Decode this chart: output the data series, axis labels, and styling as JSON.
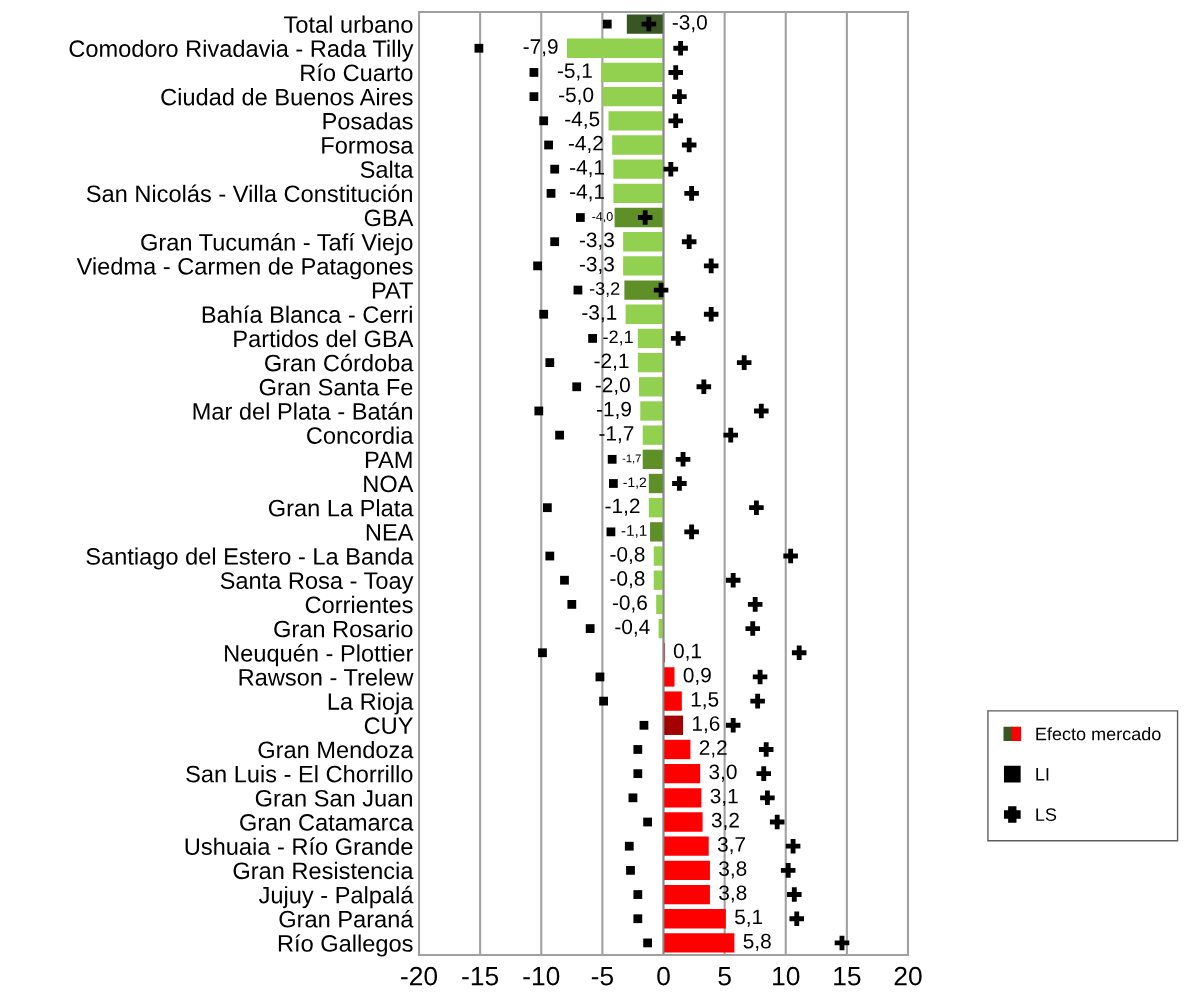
{
  "chart_data": {
    "type": "bar",
    "orientation": "horizontal",
    "categories": [
      "Total urbano",
      "Comodoro Rivadavia - Rada Tilly",
      "Río Cuarto",
      "Ciudad de Buenos Aires",
      "Posadas",
      "Formosa",
      "Salta",
      "San Nicolás - Villa Constitución",
      "GBA",
      "Gran Tucumán - Tafí Viejo",
      "Viedma - Carmen de Patagones",
      "PAT",
      "Bahía Blanca - Cerri",
      "Partidos del GBA",
      "Gran Córdoba",
      "Gran Santa Fe",
      "Mar del Plata - Batán",
      "Concordia",
      "PAM",
      "NOA",
      "Gran La Plata",
      "NEA",
      "Santiago del Estero - La Banda",
      "Santa Rosa - Toay",
      "Corrientes",
      "Gran Rosario",
      "Neuquén - Plottier",
      "Rawson - Trelew",
      "La Rioja",
      "CUY",
      "Gran Mendoza",
      "San Luis - El Chorrillo",
      "Gran San Juan",
      "Gran Catamarca",
      "Ushuaia - Río Grande",
      "Gran Resistencia",
      "Jujuy - Palpalá",
      "Gran Paraná",
      "Río Gallegos"
    ],
    "series": [
      {
        "name": "Efecto mercado",
        "values": [
          -3.0,
          -7.9,
          -5.1,
          -5.0,
          -4.5,
          -4.2,
          -4.1,
          -4.1,
          -4.0,
          -3.3,
          -3.3,
          -3.2,
          -3.1,
          -2.1,
          -2.1,
          -2.0,
          -1.9,
          -1.7,
          -1.7,
          -1.2,
          -1.2,
          -1.1,
          -0.8,
          -0.8,
          -0.6,
          -0.4,
          0.1,
          0.9,
          1.5,
          1.6,
          2.2,
          3.0,
          3.1,
          3.2,
          3.7,
          3.8,
          3.8,
          5.1,
          5.8
        ],
        "value_labels": [
          "-3,0",
          "-7,9",
          "-5,1",
          "-5,0",
          "-4,5",
          "-4,2",
          "-4,1",
          "-4,1",
          "-4,0",
          "-3,3",
          "-3,3",
          "-3,2",
          "-3,1",
          "-2,1",
          "-2,1",
          "-2,0",
          "-1,9",
          "-1,7",
          "-1,7",
          "-1,2",
          "-1,2",
          "-1,1",
          "-0,8",
          "-0,8",
          "-0,6",
          "-0,4",
          "0,1",
          "0,9",
          "1,5",
          "1,6",
          "2,2",
          "3,0",
          "3,1",
          "3,2",
          "3,7",
          "3,8",
          "3,8",
          "5,1",
          "5,8"
        ],
        "colors": [
          "#375623",
          "#92d050",
          "#92d050",
          "#92d050",
          "#92d050",
          "#92d050",
          "#92d050",
          "#92d050",
          "#5f9028",
          "#92d050",
          "#92d050",
          "#5f9028",
          "#92d050",
          "#92d050",
          "#92d050",
          "#92d050",
          "#92d050",
          "#92d050",
          "#5f9028",
          "#5f9028",
          "#92d050",
          "#5f9028",
          "#92d050",
          "#92d050",
          "#92d050",
          "#92d050",
          "#ff0000",
          "#ff0000",
          "#ff0000",
          "#a50000",
          "#ff0000",
          "#ff0000",
          "#ff0000",
          "#ff0000",
          "#ff0000",
          "#ff0000",
          "#ff0000",
          "#ff0000",
          "#ff0000"
        ]
      },
      {
        "name": "LI",
        "type": "scatter",
        "marker": "square",
        "color": "#000000",
        "values": [
          -4.6,
          -15.1,
          -10.6,
          -10.6,
          -9.8,
          -9.4,
          -8.9,
          -9.2,
          -6.8,
          -8.9,
          -10.3,
          -7.0,
          -9.8,
          -5.8,
          -9.3,
          -7.1,
          -10.2,
          -8.5,
          -4.2,
          -4.1,
          -9.5,
          -4.3,
          -9.3,
          -8.1,
          -7.5,
          -6.0,
          -9.9,
          -5.2,
          -4.9,
          -1.6,
          -2.1,
          -2.1,
          -2.5,
          -1.3,
          -2.8,
          -2.7,
          -2.1,
          -2.1,
          -1.3
        ]
      },
      {
        "name": "LS",
        "type": "scatter",
        "marker": "cross",
        "color": "#000000",
        "values": [
          -1.2,
          1.4,
          1.0,
          1.3,
          1.0,
          2.1,
          0.6,
          2.3,
          -1.5,
          2.1,
          3.9,
          -0.2,
          3.9,
          1.2,
          6.6,
          3.3,
          8.0,
          5.5,
          1.6,
          1.3,
          7.6,
          2.3,
          10.4,
          5.7,
          7.5,
          7.3,
          11.1,
          7.9,
          7.7,
          5.7,
          8.4,
          8.2,
          8.5,
          9.3,
          10.6,
          10.2,
          10.7,
          10.9,
          14.6
        ]
      }
    ],
    "xlim": [
      -20,
      20
    ],
    "xticks": [
      -20,
      -15,
      -10,
      -5,
      0,
      5,
      10,
      15,
      20
    ],
    "grid": "x",
    "legend": "right"
  }
}
